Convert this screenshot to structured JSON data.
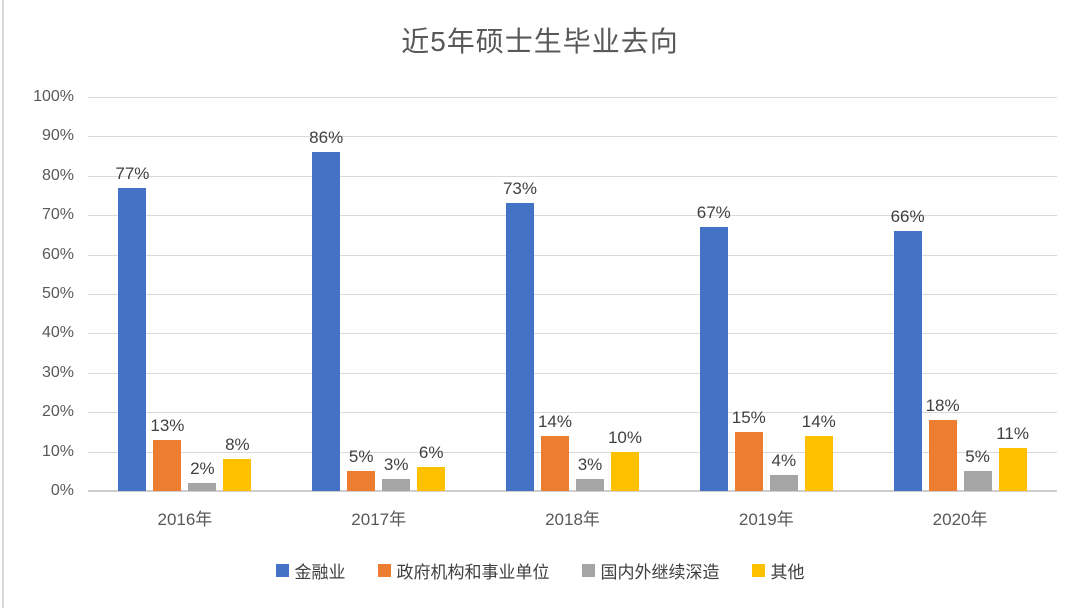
{
  "title": "近5年硕士生毕业去向",
  "chart_data": {
    "type": "bar",
    "title": "近5年硕士生毕业去向",
    "categories": [
      "2016年",
      "2017年",
      "2018年",
      "2019年",
      "2020年"
    ],
    "series": [
      {
        "name": "金融业",
        "color": "#4472C4",
        "values": [
          77,
          86,
          73,
          67,
          66
        ]
      },
      {
        "name": "政府机构和事业单位",
        "color": "#ED7D31",
        "values": [
          13,
          5,
          14,
          15,
          18
        ]
      },
      {
        "name": "国内外继续深造",
        "color": "#A5A5A5",
        "values": [
          2,
          3,
          3,
          4,
          5
        ]
      },
      {
        "name": "其他",
        "color": "#FFC000",
        "values": [
          8,
          6,
          10,
          14,
          11
        ]
      }
    ],
    "data_label_suffix": "%",
    "ylim": [
      0,
      100
    ],
    "y_ticks": [
      "100%",
      "90%",
      "80%",
      "70%",
      "60%",
      "50%",
      "40%",
      "30%",
      "20%",
      "10%",
      "0%"
    ],
    "grid": true,
    "legend_position": "bottom"
  },
  "colors": {
    "title_text": "#595959",
    "axis_text": "#595959",
    "data_label_text": "#404040",
    "gridline": "#D9D9D9",
    "baseline": "#CFCDCD",
    "background": "#FFFFFF"
  }
}
